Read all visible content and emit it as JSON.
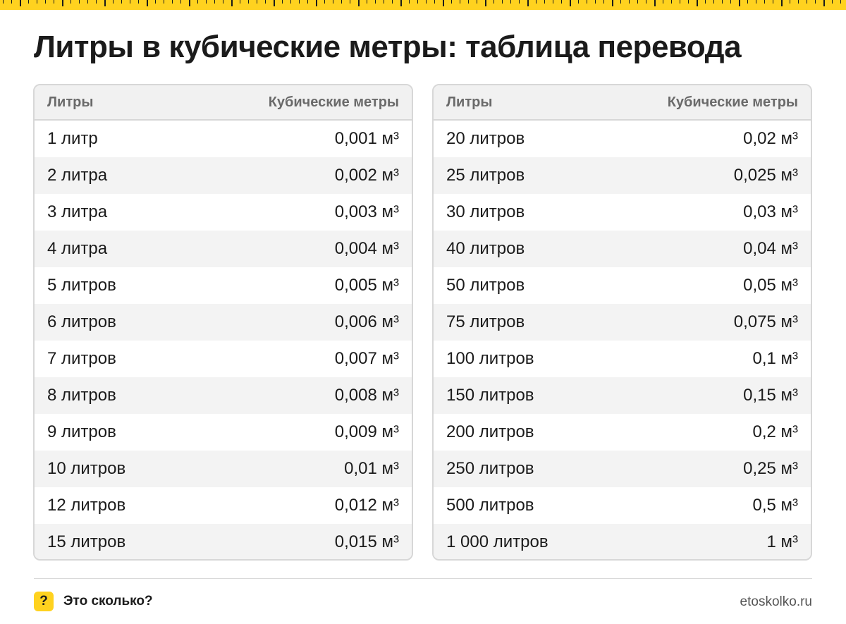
{
  "title": "Литры в кубические метры: таблица перевода",
  "tables": [
    {
      "header": {
        "col1": "Литры",
        "col2": "Кубические метры"
      },
      "rows": [
        {
          "liters": "1 литр",
          "cubic": "0,001 м³"
        },
        {
          "liters": "2 литра",
          "cubic": "0,002 м³"
        },
        {
          "liters": "3 литра",
          "cubic": "0,003 м³"
        },
        {
          "liters": "4 литра",
          "cubic": "0,004 м³"
        },
        {
          "liters": "5 литров",
          "cubic": "0,005 м³"
        },
        {
          "liters": "6 литров",
          "cubic": "0,006 м³"
        },
        {
          "liters": "7 литров",
          "cubic": "0,007 м³"
        },
        {
          "liters": "8 литров",
          "cubic": "0,008 м³"
        },
        {
          "liters": "9 литров",
          "cubic": "0,009 м³"
        },
        {
          "liters": "10 литров",
          "cubic": "0,01 м³"
        },
        {
          "liters": "12 литров",
          "cubic": "0,012 м³"
        },
        {
          "liters": "15 литров",
          "cubic": "0,015 м³"
        }
      ]
    },
    {
      "header": {
        "col1": "Литры",
        "col2": "Кубические метры"
      },
      "rows": [
        {
          "liters": "20 литров",
          "cubic": "0,02 м³"
        },
        {
          "liters": "25 литров",
          "cubic": "0,025 м³"
        },
        {
          "liters": "30 литров",
          "cubic": "0,03 м³"
        },
        {
          "liters": "40 литров",
          "cubic": "0,04 м³"
        },
        {
          "liters": "50 литров",
          "cubic": "0,05 м³"
        },
        {
          "liters": "75 литров",
          "cubic": "0,075 м³"
        },
        {
          "liters": "100 литров",
          "cubic": "0,1 м³"
        },
        {
          "liters": "150 литров",
          "cubic": "0,15 м³"
        },
        {
          "liters": "200 литров",
          "cubic": "0,2 м³"
        },
        {
          "liters": "250 литров",
          "cubic": "0,25 м³"
        },
        {
          "liters": "500 литров",
          "cubic": "0,5 м³"
        },
        {
          "liters": "1 000 литров",
          "cubic": "1 м³"
        }
      ]
    }
  ],
  "footer": {
    "logo_mark": "?",
    "brand": "Это сколько?",
    "site": "etoskolko.ru"
  },
  "colors": {
    "accent": "#ffd21f",
    "text": "#1b1b1b",
    "header_text": "#6a6a6a",
    "stripe": "#f3f3f3",
    "border": "#d7d7d7"
  }
}
